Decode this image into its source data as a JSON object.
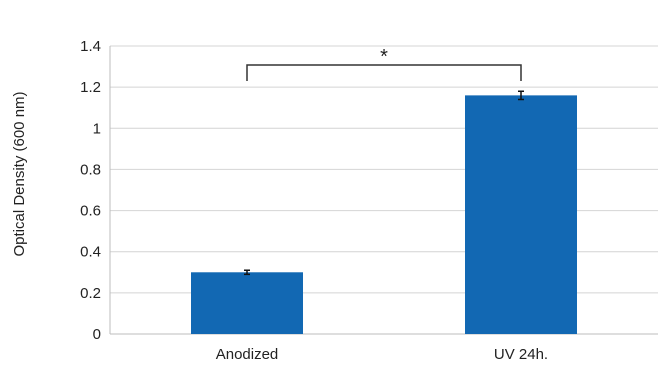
{
  "chart_data": {
    "type": "bar",
    "categories": [
      "Anodized",
      "UV 24h."
    ],
    "values": [
      0.3,
      1.16
    ],
    "errors": [
      0.01,
      0.02
    ],
    "ylabel": "Optical Density (600 nm)",
    "xlabel": "",
    "title": "",
    "ylim": [
      0,
      1.4
    ],
    "yticks": [
      0,
      0.2,
      0.4,
      0.6,
      0.8,
      1,
      1.2,
      1.4
    ],
    "ytick_labels": [
      "0",
      "0.2",
      "0.4",
      "0.6",
      "0.8",
      "1",
      "1.2",
      "1.4"
    ],
    "grid": true,
    "bar_color": "#1268b3",
    "significance": {
      "pair": [
        0,
        1
      ],
      "label": "*"
    }
  }
}
